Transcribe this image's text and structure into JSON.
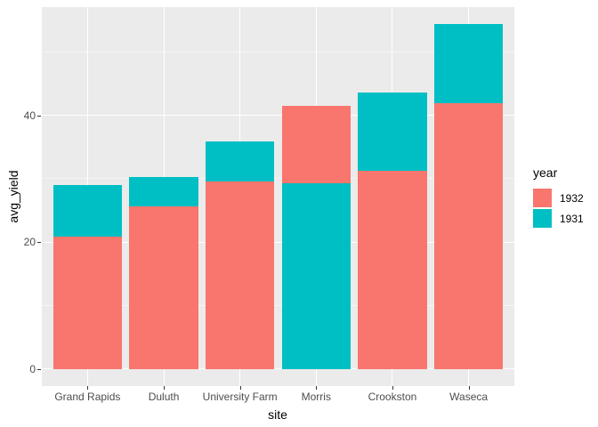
{
  "chart_data": {
    "type": "bar",
    "position": "identity-overlap",
    "title": "",
    "xlabel": "site",
    "ylabel": "avg_yield",
    "categories": [
      "Grand Rapids",
      "Duluth",
      "University Farm",
      "Morris",
      "Crookston",
      "Waseca"
    ],
    "series": [
      {
        "name": "1932",
        "color": "#F8766D",
        "values": [
          20.81,
          25.7,
          29.51,
          41.51,
          31.18,
          41.87
        ]
      },
      {
        "name": "1931",
        "color": "#00BFC4",
        "values": [
          29.05,
          30.29,
          35.83,
          29.29,
          43.66,
          54.35
        ]
      }
    ],
    "y_ticks": [
      0,
      20,
      40
    ],
    "y_minor_ticks": [
      10,
      30,
      50
    ],
    "ylim": [
      -2.72,
      57.07
    ],
    "bar_width_fraction": 0.9,
    "grid": true,
    "legend": {
      "title": "year",
      "position": "right",
      "entries": [
        "1932",
        "1931"
      ]
    }
  },
  "colors": {
    "panel_bg": "#EBEBEB",
    "grid_major": "#FFFFFF",
    "axis_text": "#4D4D4D",
    "title_text": "#000000",
    "tick_mark": "#333333"
  }
}
